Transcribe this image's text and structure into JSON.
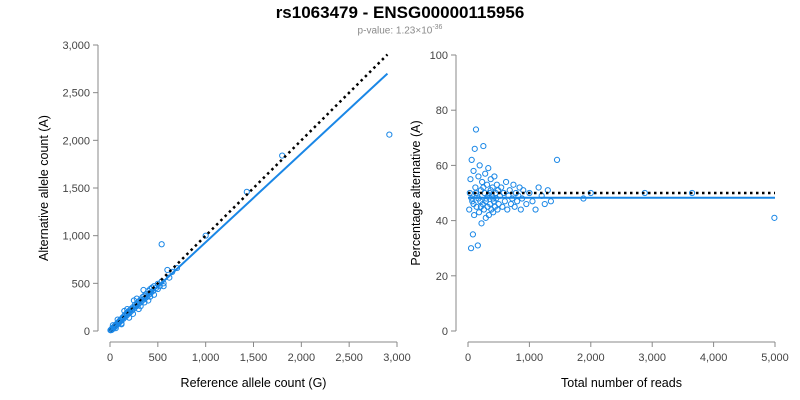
{
  "title": "rs1063479 - ENSG00000115956",
  "subtitle_prefix": "p-value: 1.23×10",
  "subtitle_exponent": "-36",
  "colors": {
    "points": "#1a87e6",
    "fit": "#1a87e6",
    "reference": "#000000",
    "axis": "#888888"
  },
  "chart_data": [
    {
      "type": "scatter",
      "xlabel": "Reference allele count (G)",
      "ylabel": "Alternative allele count (A)",
      "xlim": [
        0,
        3000
      ],
      "ylim": [
        0,
        3000
      ],
      "xticks": [
        0,
        500,
        1000,
        1500,
        2000,
        2500,
        3000
      ],
      "yticks": [
        0,
        500,
        1000,
        1500,
        2000,
        2500,
        3000
      ],
      "xtick_labels": [
        "0",
        "500",
        "1,000",
        "1,500",
        "2,000",
        "2,500",
        "3,000"
      ],
      "ytick_labels": [
        "0",
        "500",
        "1,000",
        "1,500",
        "2,000",
        "2,500",
        "3,000"
      ],
      "reference_line": {
        "x": [
          0,
          2900
        ],
        "y": [
          0,
          2900
        ]
      },
      "fit_line": {
        "x": [
          0,
          2900
        ],
        "y": [
          0,
          2700
        ]
      },
      "points": [
        [
          5,
          8
        ],
        [
          10,
          12
        ],
        [
          15,
          10
        ],
        [
          20,
          25
        ],
        [
          25,
          18
        ],
        [
          30,
          35
        ],
        [
          35,
          30
        ],
        [
          40,
          42
        ],
        [
          45,
          38
        ],
        [
          50,
          55
        ],
        [
          55,
          48
        ],
        [
          60,
          62
        ],
        [
          65,
          58
        ],
        [
          70,
          75
        ],
        [
          75,
          68
        ],
        [
          80,
          85
        ],
        [
          85,
          78
        ],
        [
          90,
          95
        ],
        [
          95,
          88
        ],
        [
          100,
          105
        ],
        [
          105,
          98
        ],
        [
          110,
          118
        ],
        [
          120,
          112
        ],
        [
          125,
          130
        ],
        [
          130,
          140
        ],
        [
          140,
          128
        ],
        [
          150,
          160
        ],
        [
          155,
          145
        ],
        [
          160,
          172
        ],
        [
          170,
          158
        ],
        [
          175,
          190
        ],
        [
          180,
          170
        ],
        [
          190,
          200
        ],
        [
          200,
          185
        ],
        [
          205,
          215
        ],
        [
          210,
          198
        ],
        [
          220,
          232
        ],
        [
          230,
          215
        ],
        [
          240,
          250
        ],
        [
          250,
          235
        ],
        [
          260,
          275
        ],
        [
          270,
          255
        ],
        [
          280,
          290
        ],
        [
          290,
          270
        ],
        [
          300,
          310
        ],
        [
          310,
          295
        ],
        [
          320,
          330
        ],
        [
          330,
          310
        ],
        [
          340,
          355
        ],
        [
          350,
          330
        ],
        [
          360,
          370
        ],
        [
          370,
          345
        ],
        [
          380,
          390
        ],
        [
          390,
          360
        ],
        [
          400,
          420
        ],
        [
          410,
          385
        ],
        [
          420,
          440
        ],
        [
          430,
          405
        ],
        [
          440,
          455
        ],
        [
          450,
          420
        ],
        [
          460,
          470
        ],
        [
          480,
          450
        ],
        [
          500,
          495
        ],
        [
          520,
          470
        ],
        [
          540,
          520
        ],
        [
          560,
          500
        ],
        [
          600,
          640
        ],
        [
          620,
          560
        ],
        [
          650,
          620
        ],
        [
          700,
          660
        ],
        [
          30,
          60
        ],
        [
          60,
          30
        ],
        [
          80,
          120
        ],
        [
          120,
          70
        ],
        [
          150,
          210
        ],
        [
          200,
          140
        ],
        [
          250,
          320
        ],
        [
          300,
          230
        ],
        [
          350,
          430
        ],
        [
          400,
          320
        ],
        [
          120,
          80
        ],
        [
          180,
          230
        ],
        [
          240,
          180
        ],
        [
          280,
          340
        ],
        [
          320,
          260
        ],
        [
          360,
          300
        ],
        [
          420,
          360
        ],
        [
          460,
          380
        ],
        [
          500,
          440
        ],
        [
          560,
          470
        ],
        [
          540,
          910
        ],
        [
          1000,
          1000
        ],
        [
          1430,
          1460
        ],
        [
          1800,
          1840
        ],
        [
          2920,
          2060
        ]
      ]
    },
    {
      "type": "scatter",
      "xlabel": "Total number of reads",
      "ylabel": "Percentage alternative (A)",
      "xlim": [
        0,
        5000
      ],
      "ylim": [
        0,
        100
      ],
      "xticks": [
        0,
        1000,
        2000,
        3000,
        4000,
        5000
      ],
      "yticks": [
        0,
        20,
        40,
        60,
        80,
        100
      ],
      "xtick_labels": [
        "0",
        "1,000",
        "2,000",
        "3,000",
        "4,000",
        "5,000"
      ],
      "ytick_labels": [
        "0",
        "20",
        "40",
        "60",
        "80",
        "100"
      ],
      "reference_line": {
        "x": [
          0,
          5000
        ],
        "y": [
          50,
          50
        ]
      },
      "fit_line": {
        "x": [
          0,
          5000
        ],
        "y": [
          48.3,
          48.3
        ]
      },
      "points": [
        [
          20,
          44
        ],
        [
          30,
          50
        ],
        [
          40,
          55
        ],
        [
          50,
          30
        ],
        [
          60,
          62
        ],
        [
          70,
          47
        ],
        [
          80,
          35
        ],
        [
          90,
          58
        ],
        [
          100,
          42
        ],
        [
          110,
          66
        ],
        [
          120,
          52
        ],
        [
          130,
          73
        ],
        [
          140,
          45
        ],
        [
          150,
          49
        ],
        [
          160,
          31
        ],
        [
          170,
          56
        ],
        [
          180,
          43
        ],
        [
          190,
          60
        ],
        [
          200,
          47
        ],
        [
          210,
          51
        ],
        [
          220,
          39
        ],
        [
          230,
          54
        ],
        [
          240,
          46
        ],
        [
          250,
          67
        ],
        [
          260,
          44
        ],
        [
          270,
          50
        ],
        [
          280,
          57
        ],
        [
          290,
          41
        ],
        [
          300,
          48
        ],
        [
          310,
          53
        ],
        [
          320,
          45
        ],
        [
          330,
          59
        ],
        [
          340,
          42
        ],
        [
          350,
          50
        ],
        [
          360,
          46
        ],
        [
          370,
          55
        ],
        [
          380,
          44
        ],
        [
          390,
          49
        ],
        [
          400,
          52
        ],
        [
          410,
          43
        ],
        [
          420,
          47
        ],
        [
          430,
          56
        ],
        [
          440,
          45
        ],
        [
          450,
          50
        ],
        [
          460,
          48
        ],
        [
          470,
          53
        ],
        [
          480,
          44
        ],
        [
          490,
          51
        ],
        [
          500,
          46
        ],
        [
          520,
          49
        ],
        [
          540,
          52
        ],
        [
          560,
          45
        ],
        [
          580,
          50
        ],
        [
          600,
          47
        ],
        [
          620,
          54
        ],
        [
          640,
          44
        ],
        [
          660,
          49
        ],
        [
          680,
          51
        ],
        [
          700,
          46
        ],
        [
          720,
          48
        ],
        [
          740,
          53
        ],
        [
          760,
          45
        ],
        [
          780,
          50
        ],
        [
          800,
          47
        ],
        [
          820,
          49
        ],
        [
          840,
          52
        ],
        [
          860,
          44
        ],
        [
          880,
          48
        ],
        [
          900,
          51
        ],
        [
          950,
          46
        ],
        [
          1000,
          50
        ],
        [
          1050,
          47
        ],
        [
          1100,
          44
        ],
        [
          1150,
          52
        ],
        [
          1200,
          49
        ],
        [
          1250,
          46
        ],
        [
          1300,
          51
        ],
        [
          1350,
          47
        ],
        [
          1450,
          62
        ],
        [
          1880,
          48
        ],
        [
          60,
          48
        ],
        [
          90,
          46
        ],
        [
          130,
          50
        ],
        [
          170,
          48
        ],
        [
          210,
          45
        ],
        [
          250,
          52
        ],
        [
          290,
          47
        ],
        [
          330,
          49
        ],
        [
          370,
          51
        ],
        [
          410,
          48
        ],
        [
          2000,
          50
        ],
        [
          2880,
          50
        ],
        [
          3650,
          50
        ],
        [
          4990,
          41
        ]
      ]
    }
  ]
}
